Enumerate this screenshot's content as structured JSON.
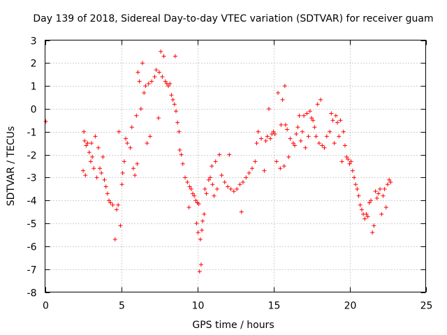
{
  "chart_data": {
    "type": "scatter",
    "title": "Day 139 of 2018, Sidereal Day-to-day VTEC variation (SDTVAR) for receiver guam",
    "xlabel": "GPS time / hours",
    "ylabel": "SDTVAR / TECUs",
    "xlim": [
      0,
      25
    ],
    "ylim": [
      -8,
      3
    ],
    "x_ticks": [
      0,
      5,
      10,
      15,
      20,
      25
    ],
    "x_tick_labels": [
      "0",
      "5",
      "10",
      "15",
      "20",
      "25"
    ],
    "y_ticks": [
      -8,
      -7,
      -6,
      -5,
      -4,
      -3,
      -2,
      -1,
      0,
      1,
      2,
      3
    ],
    "y_tick_labels": [
      "-8",
      "-7",
      "-6",
      "-5",
      "-4",
      "-3",
      "-2",
      "-1",
      "0",
      "1",
      "2",
      "3"
    ],
    "grid": true,
    "marker": "+",
    "color": "#ff0000",
    "series": [
      {
        "name": "SDTVAR",
        "points": [
          [
            0.05,
            -0.55
          ],
          [
            2.5,
            -2.7
          ],
          [
            2.55,
            -1.0
          ],
          [
            2.6,
            -1.4
          ],
          [
            2.65,
            -2.9
          ],
          [
            2.7,
            -1.6
          ],
          [
            2.8,
            -1.5
          ],
          [
            2.9,
            -1.9
          ],
          [
            3.0,
            -2.3
          ],
          [
            3.05,
            -1.5
          ],
          [
            3.1,
            -2.1
          ],
          [
            3.2,
            -2.6
          ],
          [
            3.3,
            -1.2
          ],
          [
            3.4,
            -3.0
          ],
          [
            3.5,
            -1.7
          ],
          [
            3.6,
            -2.6
          ],
          [
            3.7,
            -2.8
          ],
          [
            3.8,
            -2.1
          ],
          [
            3.9,
            -3.1
          ],
          [
            4.0,
            -3.4
          ],
          [
            4.1,
            -3.7
          ],
          [
            4.2,
            -4.0
          ],
          [
            4.3,
            -4.1
          ],
          [
            4.45,
            -4.2
          ],
          [
            4.6,
            -5.7
          ],
          [
            4.7,
            -4.4
          ],
          [
            4.8,
            -4.2
          ],
          [
            4.85,
            -1.0
          ],
          [
            4.95,
            -5.1
          ],
          [
            5.05,
            -3.3
          ],
          [
            5.1,
            -2.8
          ],
          [
            5.2,
            -2.3
          ],
          [
            5.3,
            -1.3
          ],
          [
            5.4,
            -1.5
          ],
          [
            5.6,
            -1.7
          ],
          [
            5.7,
            -0.8
          ],
          [
            5.8,
            -2.6
          ],
          [
            5.9,
            -2.9
          ],
          [
            6.0,
            -0.3
          ],
          [
            6.05,
            -2.4
          ],
          [
            6.1,
            1.6
          ],
          [
            6.2,
            1.2
          ],
          [
            6.3,
            0.0
          ],
          [
            6.4,
            2.0
          ],
          [
            6.5,
            0.7
          ],
          [
            6.6,
            1.0
          ],
          [
            6.7,
            -1.5
          ],
          [
            6.8,
            1.1
          ],
          [
            6.9,
            -1.2
          ],
          [
            7.0,
            1.2
          ],
          [
            7.2,
            1.4
          ],
          [
            7.3,
            1.7
          ],
          [
            7.45,
            -0.4
          ],
          [
            7.5,
            1.6
          ],
          [
            7.6,
            2.5
          ],
          [
            7.7,
            1.4
          ],
          [
            7.8,
            2.3
          ],
          [
            7.9,
            1.2
          ],
          [
            8.0,
            1.1
          ],
          [
            8.1,
            1.0
          ],
          [
            8.2,
            1.1
          ],
          [
            8.3,
            0.6
          ],
          [
            8.4,
            0.4
          ],
          [
            8.5,
            0.2
          ],
          [
            8.55,
            2.3
          ],
          [
            8.6,
            -0.1
          ],
          [
            8.7,
            -0.6
          ],
          [
            8.8,
            -1.0
          ],
          [
            8.85,
            -1.8
          ],
          [
            8.95,
            -2.0
          ],
          [
            9.05,
            -2.4
          ],
          [
            9.2,
            -3.0
          ],
          [
            9.35,
            -3.2
          ],
          [
            9.45,
            -4.3
          ],
          [
            9.5,
            -3.4
          ],
          [
            9.6,
            -3.5
          ],
          [
            9.7,
            -3.7
          ],
          [
            9.8,
            -3.8
          ],
          [
            9.9,
            -4.0
          ],
          [
            9.95,
            -5.0
          ],
          [
            10.0,
            -4.1
          ],
          [
            10.05,
            -5.4
          ],
          [
            10.1,
            -4.15
          ],
          [
            10.15,
            -7.1
          ],
          [
            10.2,
            -5.7
          ],
          [
            10.25,
            -6.8
          ],
          [
            10.3,
            -5.3
          ],
          [
            10.35,
            -4.9
          ],
          [
            10.45,
            -4.6
          ],
          [
            10.5,
            -3.5
          ],
          [
            10.6,
            -3.7
          ],
          [
            10.75,
            -3.1
          ],
          [
            10.85,
            -3.0
          ],
          [
            10.95,
            -2.5
          ],
          [
            11.0,
            -3.3
          ],
          [
            11.1,
            -3.8
          ],
          [
            11.2,
            -2.3
          ],
          [
            11.3,
            -3.5
          ],
          [
            11.45,
            -2.0
          ],
          [
            11.6,
            -2.9
          ],
          [
            11.8,
            -3.2
          ],
          [
            12.0,
            -3.4
          ],
          [
            12.1,
            -2.0
          ],
          [
            12.2,
            -3.5
          ],
          [
            12.4,
            -3.6
          ],
          [
            12.6,
            -3.5
          ],
          [
            12.8,
            -3.3
          ],
          [
            12.9,
            -4.5
          ],
          [
            13.0,
            -3.2
          ],
          [
            13.2,
            -3.0
          ],
          [
            13.4,
            -2.8
          ],
          [
            13.6,
            -2.6
          ],
          [
            13.8,
            -2.3
          ],
          [
            13.9,
            -1.5
          ],
          [
            14.0,
            -1.0
          ],
          [
            14.2,
            -1.3
          ],
          [
            14.4,
            -2.7
          ],
          [
            14.5,
            -1.4
          ],
          [
            14.6,
            -1.2
          ],
          [
            14.7,
            0.0
          ],
          [
            14.8,
            -1.3
          ],
          [
            14.9,
            -1.1
          ],
          [
            15.0,
            -1.0
          ],
          [
            15.1,
            -1.1
          ],
          [
            15.2,
            -2.3
          ],
          [
            15.3,
            0.7
          ],
          [
            15.45,
            -2.6
          ],
          [
            15.5,
            -0.7
          ],
          [
            15.6,
            0.4
          ],
          [
            15.7,
            -2.5
          ],
          [
            15.75,
            1.0
          ],
          [
            15.8,
            -0.7
          ],
          [
            15.9,
            -0.9
          ],
          [
            16.0,
            -2.1
          ],
          [
            16.1,
            -1.3
          ],
          [
            16.3,
            -1.5
          ],
          [
            16.4,
            -1.6
          ],
          [
            16.5,
            -1.1
          ],
          [
            16.6,
            -0.8
          ],
          [
            16.7,
            -0.3
          ],
          [
            16.8,
            -1.4
          ],
          [
            16.9,
            -1.0
          ],
          [
            17.0,
            -0.3
          ],
          [
            17.1,
            -1.7
          ],
          [
            17.2,
            -0.2
          ],
          [
            17.3,
            -1.2
          ],
          [
            17.4,
            -0.1
          ],
          [
            17.5,
            -0.4
          ],
          [
            17.6,
            -0.5
          ],
          [
            17.7,
            -0.8
          ],
          [
            17.8,
            -1.2
          ],
          [
            17.9,
            0.2
          ],
          [
            18.0,
            -1.5
          ],
          [
            18.1,
            0.4
          ],
          [
            18.2,
            -1.6
          ],
          [
            18.35,
            -1.7
          ],
          [
            18.5,
            -1.2
          ],
          [
            18.7,
            -1.0
          ],
          [
            18.8,
            -0.2
          ],
          [
            18.9,
            -0.5
          ],
          [
            19.0,
            -1.5
          ],
          [
            19.1,
            -0.3
          ],
          [
            19.2,
            -0.6
          ],
          [
            19.3,
            -1.2
          ],
          [
            19.4,
            -0.5
          ],
          [
            19.5,
            -2.3
          ],
          [
            19.6,
            -1.0
          ],
          [
            19.7,
            -1.6
          ],
          [
            19.8,
            -2.1
          ],
          [
            19.9,
            -2.2
          ],
          [
            20.0,
            -2.4
          ],
          [
            20.1,
            -2.3
          ],
          [
            20.2,
            -2.7
          ],
          [
            20.3,
            -3.0
          ],
          [
            20.4,
            -3.3
          ],
          [
            20.5,
            -3.5
          ],
          [
            20.6,
            -3.8
          ],
          [
            20.7,
            -4.2
          ],
          [
            20.8,
            -4.4
          ],
          [
            20.9,
            -4.6
          ],
          [
            21.0,
            -4.8
          ],
          [
            21.1,
            -4.6
          ],
          [
            21.2,
            -4.7
          ],
          [
            21.3,
            -4.1
          ],
          [
            21.4,
            -4.0
          ],
          [
            21.5,
            -5.4
          ],
          [
            21.6,
            -5.1
          ],
          [
            21.7,
            -3.6
          ],
          [
            21.8,
            -3.9
          ],
          [
            21.9,
            -3.7
          ],
          [
            22.0,
            -3.5
          ],
          [
            22.1,
            -4.6
          ],
          [
            22.2,
            -3.8
          ],
          [
            22.3,
            -3.5
          ],
          [
            22.4,
            -4.3
          ],
          [
            22.5,
            -3.3
          ],
          [
            22.6,
            -3.1
          ],
          [
            22.7,
            -3.2
          ]
        ]
      }
    ]
  }
}
